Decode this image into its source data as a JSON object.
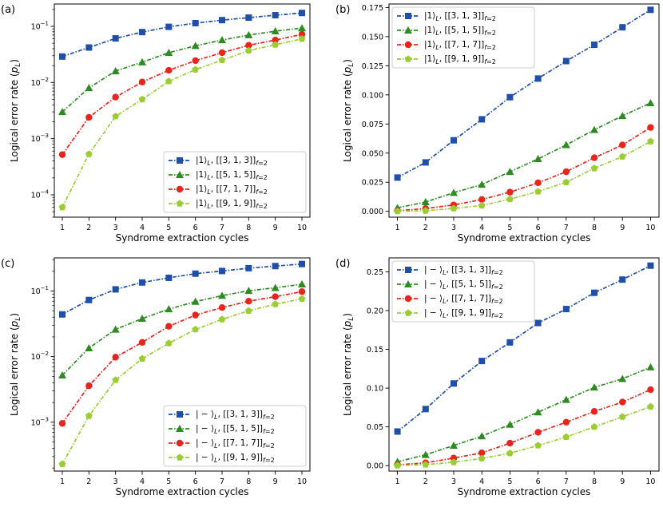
{
  "figure": {
    "background": "#ffffff"
  },
  "series_styles": [
    {
      "color": "#1f4fa8",
      "marker": "square"
    },
    {
      "color": "#2e8b22",
      "marker": "triangle"
    },
    {
      "color": "#e8241c",
      "marker": "circle"
    },
    {
      "color": "#9acd32",
      "marker": "pentagon"
    }
  ],
  "chart_data": [
    {
      "panel_label": "(a)",
      "type": "line",
      "yscale": "log",
      "ylim": [
        4e-05,
        0.25
      ],
      "xlim": [
        0.7,
        10.3
      ],
      "xlabel": "Syndrome extraction cycles",
      "ylabel": "Logical error rate (p_L)",
      "xticks": [
        "1",
        "2",
        "3",
        "4",
        "5",
        "6",
        "7",
        "8",
        "9",
        "10"
      ],
      "yticks": [
        {
          "value": 0.0001,
          "base": "10",
          "exp": "−4"
        },
        {
          "value": 0.001,
          "base": "10",
          "exp": "−3"
        },
        {
          "value": 0.01,
          "base": "10",
          "exp": "−2"
        },
        {
          "value": 0.1,
          "base": "10",
          "exp": "−1"
        }
      ],
      "legend_position": "bottom-right",
      "x": [
        1,
        2,
        3,
        4,
        5,
        6,
        7,
        8,
        9,
        10
      ],
      "series": [
        {
          "name": "|1⟩_L, [[3,1,3]]_{f=2}",
          "ket": "|1⟩",
          "code": "[[3, 1, 3]]",
          "values": [
            0.029,
            0.042,
            0.061,
            0.079,
            0.098,
            0.114,
            0.129,
            0.143,
            0.158,
            0.173
          ]
        },
        {
          "name": "|1⟩_L, [[5,1,5]]_{f=2}",
          "ket": "|1⟩",
          "code": "[[5, 1, 5]]",
          "values": [
            0.003,
            0.008,
            0.016,
            0.023,
            0.034,
            0.045,
            0.057,
            0.07,
            0.082,
            0.093
          ]
        },
        {
          "name": "|1⟩_L, [[7,1,7]]_{f=2}",
          "ket": "|1⟩",
          "code": "[[7, 1, 7]]",
          "values": [
            0.00052,
            0.0024,
            0.0055,
            0.0102,
            0.0165,
            0.0245,
            0.034,
            0.046,
            0.057,
            0.072
          ]
        },
        {
          "name": "|1⟩_L, [[9,1,9]]_{f=2}",
          "ket": "|1⟩",
          "code": "[[9, 1, 9]]",
          "values": [
            6e-05,
            0.00053,
            0.0025,
            0.005,
            0.0105,
            0.017,
            0.025,
            0.037,
            0.047,
            0.06
          ]
        }
      ]
    },
    {
      "panel_label": "(b)",
      "type": "line",
      "yscale": "linear",
      "ylim": [
        -0.005,
        0.178
      ],
      "xlim": [
        0.7,
        10.3
      ],
      "xlabel": "Syndrome extraction cycles",
      "ylabel": "Logical error rate (p_L)",
      "xticks": [
        "1",
        "2",
        "3",
        "4",
        "5",
        "6",
        "7",
        "8",
        "9",
        "10"
      ],
      "yticks": [
        {
          "value": 0,
          "label": "0.000"
        },
        {
          "value": 0.025,
          "label": "0.025"
        },
        {
          "value": 0.05,
          "label": "0.050"
        },
        {
          "value": 0.075,
          "label": "0.075"
        },
        {
          "value": 0.1,
          "label": "0.100"
        },
        {
          "value": 0.125,
          "label": "0.125"
        },
        {
          "value": 0.15,
          "label": "0.150"
        },
        {
          "value": 0.175,
          "label": "0.175"
        }
      ],
      "legend_position": "top-left",
      "x": [
        1,
        2,
        3,
        4,
        5,
        6,
        7,
        8,
        9,
        10
      ],
      "series": [
        {
          "name": "|1⟩_L, [[3,1,3]]_{f=2}",
          "ket": "|1⟩",
          "code": "[[3, 1, 3]]",
          "values": [
            0.029,
            0.042,
            0.061,
            0.079,
            0.098,
            0.114,
            0.129,
            0.143,
            0.158,
            0.173
          ]
        },
        {
          "name": "|1⟩_L, [[5,1,5]]_{f=2}",
          "ket": "|1⟩",
          "code": "[[5, 1, 5]]",
          "values": [
            0.003,
            0.008,
            0.016,
            0.023,
            0.034,
            0.045,
            0.057,
            0.07,
            0.082,
            0.093
          ]
        },
        {
          "name": "|1⟩_L, [[7,1,7]]_{f=2}",
          "ket": "|1⟩",
          "code": "[[7, 1, 7]]",
          "values": [
            0.0005,
            0.0024,
            0.0055,
            0.0102,
            0.0165,
            0.0245,
            0.034,
            0.046,
            0.057,
            0.072
          ]
        },
        {
          "name": "|1⟩_L, [[9,1,9]]_{f=2}",
          "ket": "|1⟩",
          "code": "[[9, 1, 9]]",
          "values": [
            0.0001,
            0.0005,
            0.0025,
            0.005,
            0.0105,
            0.017,
            0.025,
            0.037,
            0.047,
            0.06
          ]
        }
      ]
    },
    {
      "panel_label": "(c)",
      "type": "line",
      "yscale": "log",
      "ylim": [
        0.00018,
        0.32
      ],
      "xlim": [
        0.7,
        10.3
      ],
      "xlabel": "Syndrome extraction cycles",
      "ylabel": "Logical error rate (p_L)",
      "xticks": [
        "1",
        "2",
        "3",
        "4",
        "5",
        "6",
        "7",
        "8",
        "9",
        "10"
      ],
      "yticks": [
        {
          "value": 0.001,
          "base": "10",
          "exp": "−3"
        },
        {
          "value": 0.01,
          "base": "10",
          "exp": "−2"
        },
        {
          "value": 0.1,
          "base": "10",
          "exp": "−1"
        }
      ],
      "legend_position": "bottom-right",
      "x": [
        1,
        2,
        3,
        4,
        5,
        6,
        7,
        8,
        9,
        10
      ],
      "series": [
        {
          "name": "|−⟩_L, [[3,1,3]]_{f=2}",
          "ket": "| − ⟩",
          "code": "[[3, 1, 3]]",
          "values": [
            0.044,
            0.073,
            0.106,
            0.135,
            0.159,
            0.184,
            0.202,
            0.223,
            0.24,
            0.258
          ]
        },
        {
          "name": "|−⟩_L, [[5,1,5]]_{f=2}",
          "ket": "| − ⟩",
          "code": "[[5, 1, 5]]",
          "values": [
            0.0052,
            0.0135,
            0.026,
            0.038,
            0.053,
            0.069,
            0.085,
            0.101,
            0.112,
            0.127
          ]
        },
        {
          "name": "|−⟩_L, [[7,1,7]]_{f=2}",
          "ket": "| − ⟩",
          "code": "[[7, 1, 7]]",
          "values": [
            0.00096,
            0.0036,
            0.0098,
            0.0165,
            0.029,
            0.043,
            0.056,
            0.07,
            0.082,
            0.098
          ]
        },
        {
          "name": "|−⟩_L, [[9,1,9]]_{f=2}",
          "ket": "| − ⟩",
          "code": "[[9, 1, 9]]",
          "values": [
            0.00023,
            0.00125,
            0.0044,
            0.0093,
            0.016,
            0.026,
            0.037,
            0.05,
            0.063,
            0.076
          ]
        }
      ]
    },
    {
      "panel_label": "(d)",
      "type": "line",
      "yscale": "linear",
      "ylim": [
        -0.007,
        0.268
      ],
      "xlim": [
        0.7,
        10.3
      ],
      "xlabel": "Syndrome extraction cycles",
      "ylabel": "Logical error rate (p_L)",
      "xticks": [
        "1",
        "2",
        "3",
        "4",
        "5",
        "6",
        "7",
        "8",
        "9",
        "10"
      ],
      "yticks": [
        {
          "value": 0,
          "label": "0.00"
        },
        {
          "value": 0.05,
          "label": "0.05"
        },
        {
          "value": 0.1,
          "label": "0.10"
        },
        {
          "value": 0.15,
          "label": "0.15"
        },
        {
          "value": 0.2,
          "label": "0.20"
        },
        {
          "value": 0.25,
          "label": "0.25"
        }
      ],
      "legend_position": "top-left",
      "x": [
        1,
        2,
        3,
        4,
        5,
        6,
        7,
        8,
        9,
        10
      ],
      "series": [
        {
          "name": "|−⟩_L, [[3,1,3]]_{f=2}",
          "ket": "| − ⟩",
          "code": "[[3, 1, 3]]",
          "values": [
            0.044,
            0.073,
            0.106,
            0.135,
            0.159,
            0.184,
            0.202,
            0.223,
            0.24,
            0.258
          ]
        },
        {
          "name": "|−⟩_L, [[5,1,5]]_{f=2}",
          "ket": "| − ⟩",
          "code": "[[5, 1, 5]]",
          "values": [
            0.005,
            0.014,
            0.026,
            0.038,
            0.053,
            0.069,
            0.085,
            0.101,
            0.112,
            0.127
          ]
        },
        {
          "name": "|−⟩_L, [[7,1,7]]_{f=2}",
          "ket": "| − ⟩",
          "code": "[[7, 1, 7]]",
          "values": [
            0.001,
            0.0036,
            0.0098,
            0.0165,
            0.029,
            0.043,
            0.056,
            0.07,
            0.082,
            0.098
          ]
        },
        {
          "name": "|−⟩_L, [[9,1,9]]_{f=2}",
          "ket": "| − ⟩",
          "code": "[[9, 1, 9]]",
          "values": [
            0.0002,
            0.0013,
            0.0044,
            0.0093,
            0.016,
            0.026,
            0.037,
            0.05,
            0.063,
            0.076
          ]
        }
      ]
    }
  ]
}
